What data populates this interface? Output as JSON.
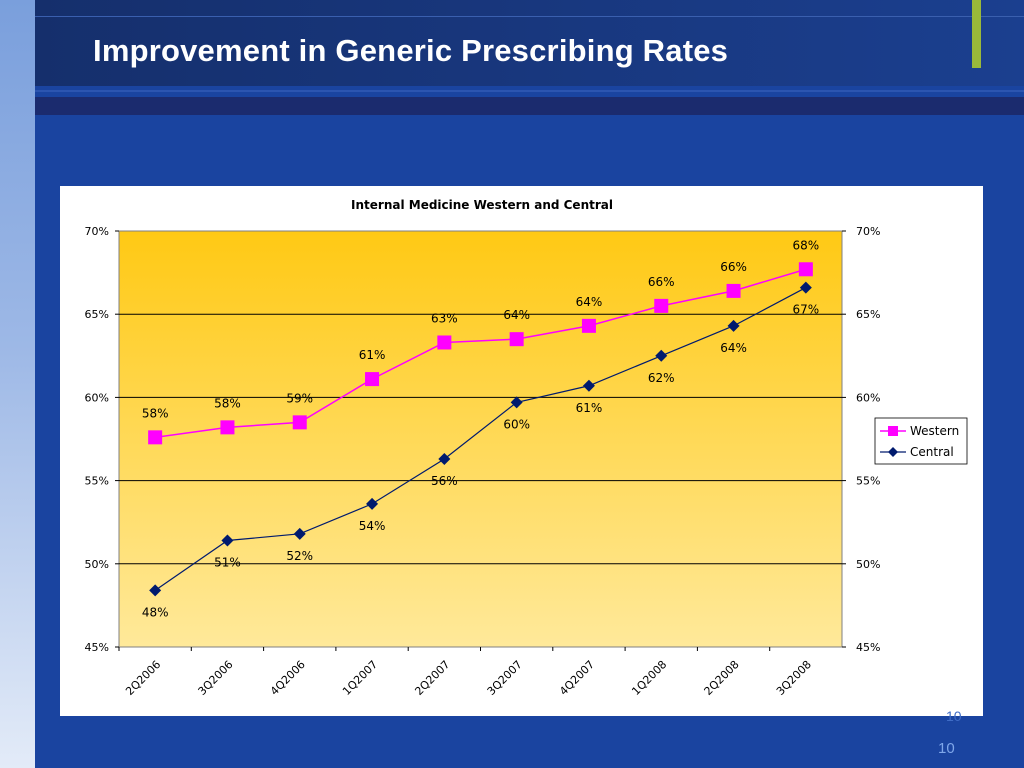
{
  "slide": {
    "title": "Improvement in Generic Prescribing Rates",
    "page_number": "10",
    "page_number_ghost": "10"
  },
  "colors": {
    "background": "#1a44a0",
    "title_bar": "#152f6c",
    "accent_green": "#9ab93a",
    "plot_gradient_top": "#ffc914",
    "plot_gradient_bottom": "#ffe99a",
    "western": "#ff00ff",
    "central": "#001a6e"
  },
  "chart_data": {
    "type": "line",
    "title": "Internal Medicine Western and Central",
    "categories": [
      "2Q2006",
      "3Q2006",
      "4Q2006",
      "1Q2007",
      "2Q2007",
      "3Q2007",
      "4Q2007",
      "1Q2008",
      "2Q2008",
      "3Q2008"
    ],
    "ylim": [
      45,
      70
    ],
    "y_ticks": [
      "45%",
      "50%",
      "55%",
      "60%",
      "65%",
      "70%"
    ],
    "y2_ticks": [
      "45%",
      "50%",
      "55%",
      "60%",
      "65%",
      "70%"
    ],
    "grid": true,
    "legend_position": "right",
    "series": [
      {
        "name": "Western",
        "marker": "square",
        "values": [
          57.6,
          58.2,
          58.5,
          61.1,
          63.3,
          63.5,
          64.3,
          65.5,
          66.4,
          67.7
        ],
        "labels": [
          "58%",
          "58%",
          "59%",
          "61%",
          "63%",
          "64%",
          "64%",
          "66%",
          "66%",
          "68%"
        ]
      },
      {
        "name": "Central",
        "marker": "diamond",
        "values": [
          48.4,
          51.4,
          51.8,
          53.6,
          56.3,
          59.7,
          60.7,
          62.5,
          64.3,
          66.6
        ],
        "labels": [
          "48%",
          "51%",
          "52%",
          "54%",
          "56%",
          "60%",
          "61%",
          "62%",
          "64%",
          "67%"
        ]
      }
    ]
  }
}
